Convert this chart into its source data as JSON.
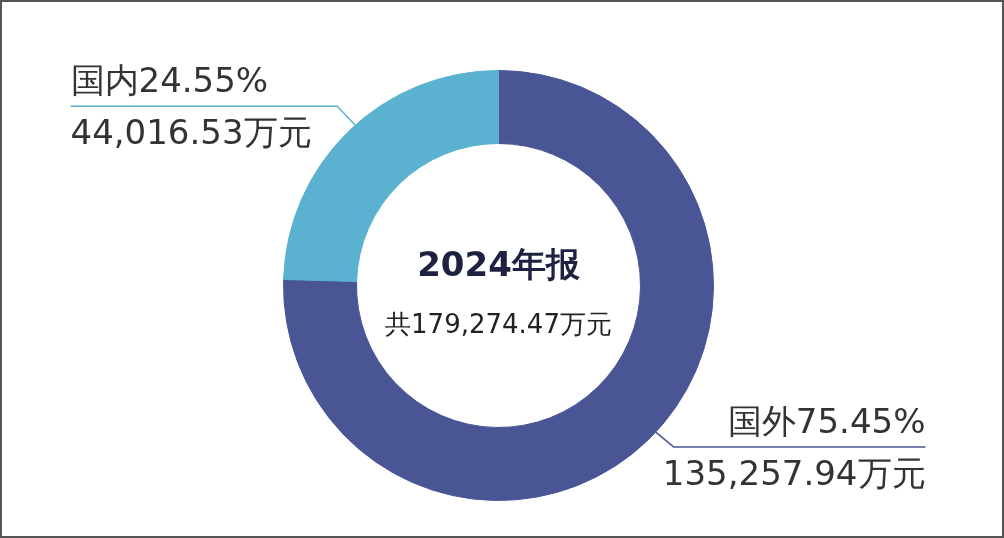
{
  "chart_data": {
    "type": "donut",
    "title": "2024年报",
    "subtitle": "共179,274.47万元",
    "categories": [
      "国外",
      "国内"
    ],
    "values": [
      135257.94,
      44016.53
    ],
    "colors": [
      "#4a5596",
      "#5ab2d0"
    ],
    "value_labels": [
      "135,257.94万元",
      "44,016.53万元"
    ],
    "annotations": [
      "75.45%",
      "24.55%"
    ]
  }
}
